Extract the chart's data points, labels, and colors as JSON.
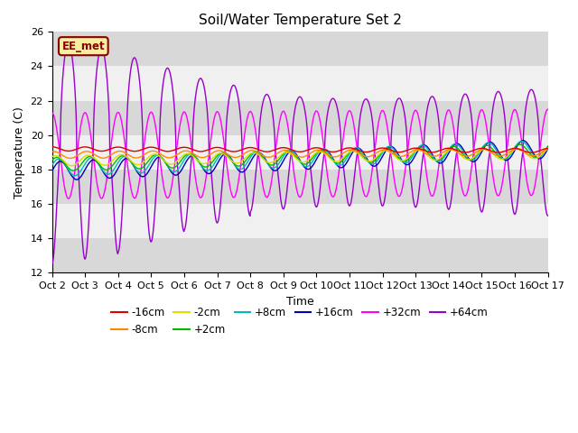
{
  "title": "Soil/Water Temperature Set 2",
  "xlabel": "Time",
  "ylabel": "Temperature (C)",
  "ylim": [
    12,
    26
  ],
  "yticks": [
    12,
    14,
    16,
    18,
    20,
    22,
    24,
    26
  ],
  "xtick_labels": [
    "Oct 2",
    "Oct 3",
    "Oct 4",
    "Oct 5",
    "Oct 6",
    "Oct 7",
    "Oct 8",
    "Oct 9",
    "Oct 10",
    "Oct 11",
    "Oct 12",
    "Oct 13",
    "Oct 14",
    "Oct 15",
    "Oct 16",
    "Oct 17"
  ],
  "annotation_text": "EE_met",
  "annotation_color": "#8B0000",
  "annotation_bg": "#f5f0a0",
  "series_colors": {
    "-16cm": "#dd0000",
    "-8cm": "#ff8800",
    "-2cm": "#dddd00",
    "+2cm": "#00bb00",
    "+8cm": "#00bbbb",
    "+16cm": "#0000bb",
    "+32cm": "#ff00ff",
    "+64cm": "#9900cc"
  },
  "bg_band_color": "#d8d8d8",
  "plot_bg": "#f0f0f0"
}
